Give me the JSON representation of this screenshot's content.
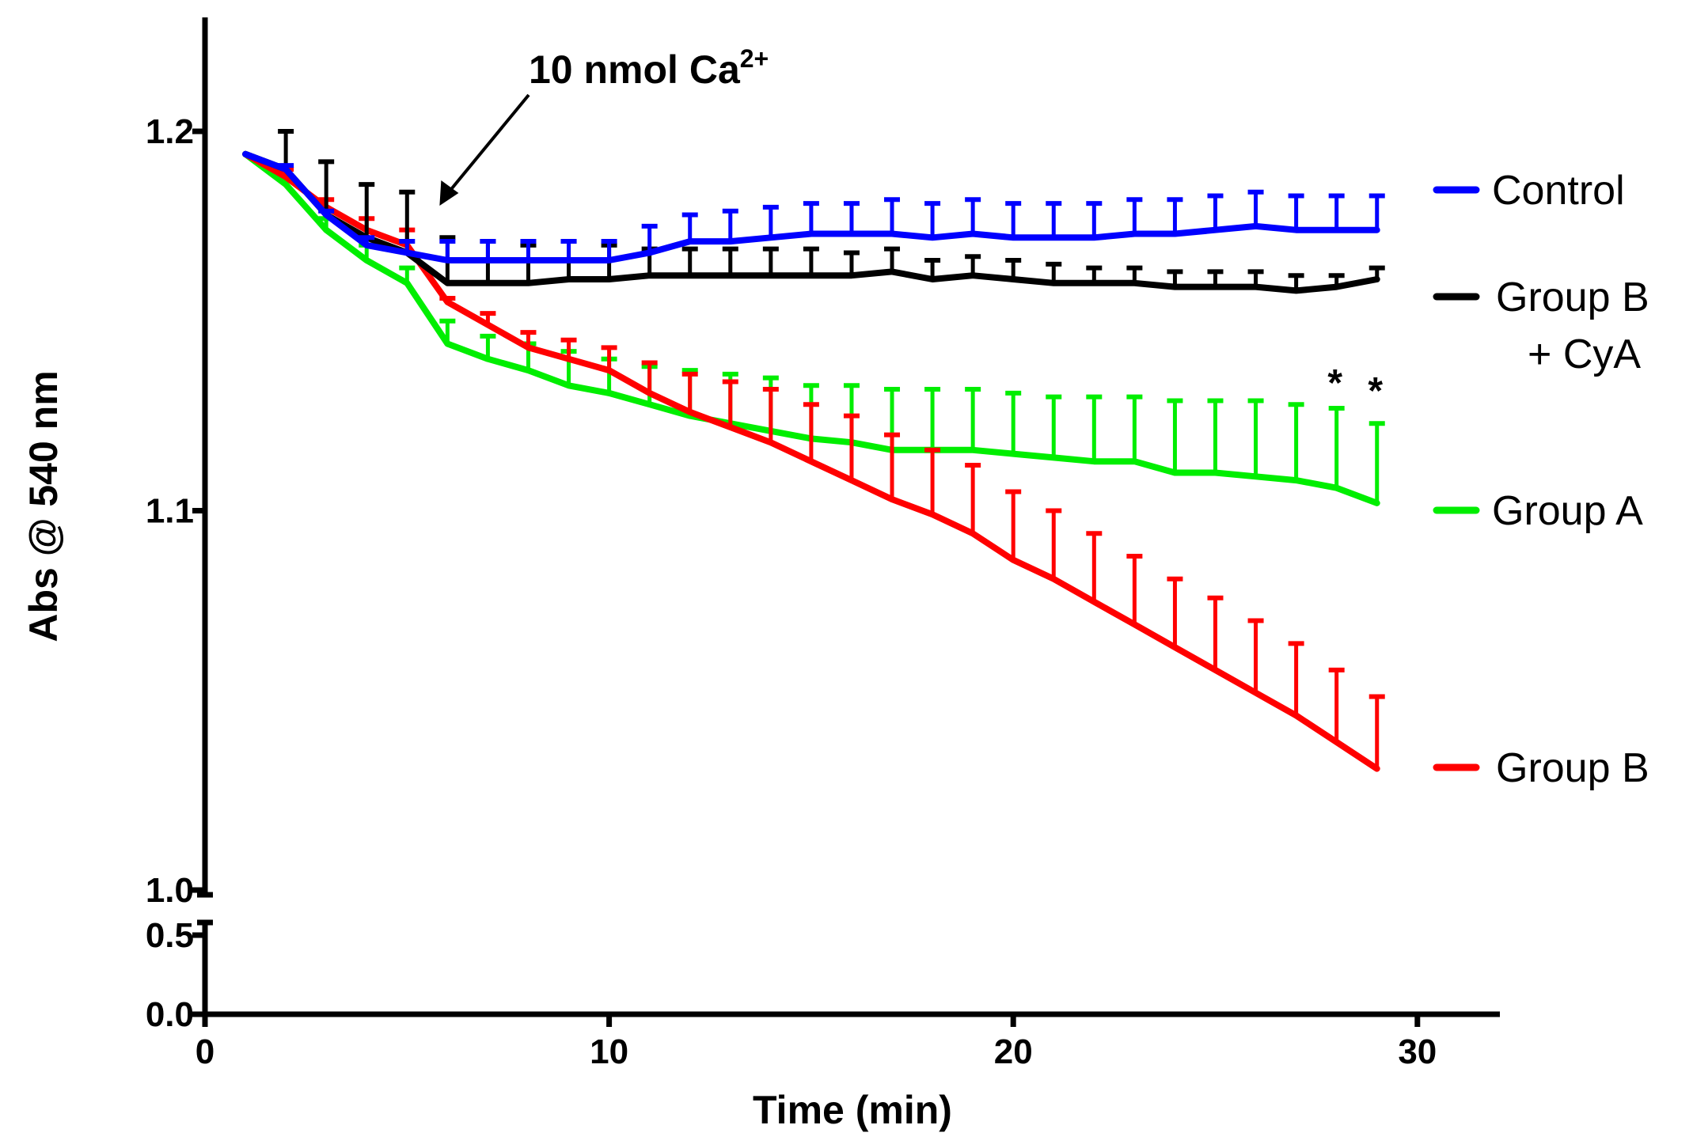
{
  "chart_data": {
    "type": "line",
    "title": "",
    "xlabel": "Time (min)",
    "ylabel": "Abs @ 540 nm",
    "xlim": [
      0,
      32
    ],
    "ylim_lower": [
      0.0,
      0.6
    ],
    "ylim_upper": [
      1.0,
      1.23
    ],
    "x_ticks": [
      0,
      10,
      20,
      30
    ],
    "x_tick_labels": [
      "0",
      "10",
      "20",
      "30"
    ],
    "y_ticks": [
      0.0,
      0.5,
      1.0,
      1.1,
      1.2
    ],
    "y_tick_labels": [
      "0.0",
      "0.5",
      "1.0",
      "1.1",
      "1.2"
    ],
    "x": [
      1,
      2,
      3,
      4,
      5,
      6,
      7,
      8,
      9,
      10,
      11,
      12,
      13,
      14,
      15,
      16,
      17,
      18,
      19,
      20,
      21,
      22,
      23,
      24,
      25,
      26,
      27,
      28,
      29
    ],
    "series": [
      {
        "name": "Control",
        "legend": [
          "Control"
        ],
        "color": "#0000ff",
        "values": [
          1.194,
          1.19,
          1.178,
          1.17,
          1.168,
          1.166,
          1.166,
          1.166,
          1.166,
          1.166,
          1.168,
          1.171,
          1.171,
          1.172,
          1.173,
          1.173,
          1.173,
          1.172,
          1.173,
          1.172,
          1.172,
          1.172,
          1.173,
          1.173,
          1.174,
          1.175,
          1.174,
          1.174,
          1.174
        ],
        "errors": [
          0.0,
          0.001,
          0.001,
          0.002,
          0.003,
          0.005,
          0.005,
          0.005,
          0.005,
          0.005,
          0.007,
          0.007,
          0.008,
          0.008,
          0.008,
          0.008,
          0.009,
          0.009,
          0.009,
          0.009,
          0.009,
          0.009,
          0.009,
          0.009,
          0.009,
          0.009,
          0.009,
          0.009,
          0.009
        ]
      },
      {
        "name": "Group B + CyA",
        "legend": [
          "Group B",
          "+ CyA"
        ],
        "color": "#000000",
        "values": [
          1.194,
          1.19,
          1.178,
          1.172,
          1.168,
          1.16,
          1.16,
          1.16,
          1.161,
          1.161,
          1.162,
          1.162,
          1.162,
          1.162,
          1.162,
          1.162,
          1.163,
          1.161,
          1.162,
          1.161,
          1.16,
          1.16,
          1.16,
          1.159,
          1.159,
          1.159,
          1.158,
          1.159,
          1.161
        ],
        "errors": [
          0.0,
          0.01,
          0.014,
          0.014,
          0.016,
          0.012,
          0.011,
          0.01,
          0.01,
          0.009,
          0.007,
          0.007,
          0.007,
          0.007,
          0.007,
          0.006,
          0.006,
          0.005,
          0.005,
          0.005,
          0.005,
          0.004,
          0.004,
          0.004,
          0.004,
          0.004,
          0.004,
          0.003,
          0.003
        ]
      },
      {
        "name": "Group A",
        "legend": [
          "Group  A"
        ],
        "color": "#00ee00",
        "values": [
          1.194,
          1.186,
          1.174,
          1.166,
          1.16,
          1.144,
          1.14,
          1.137,
          1.133,
          1.131,
          1.128,
          1.125,
          1.123,
          1.121,
          1.119,
          1.118,
          1.116,
          1.116,
          1.116,
          1.115,
          1.114,
          1.113,
          1.113,
          1.11,
          1.11,
          1.109,
          1.108,
          1.106,
          1.102
        ],
        "errors": [
          0.0,
          0.002,
          0.003,
          0.004,
          0.004,
          0.006,
          0.006,
          0.007,
          0.009,
          0.009,
          0.01,
          0.012,
          0.013,
          0.014,
          0.014,
          0.015,
          0.016,
          0.016,
          0.016,
          0.016,
          0.016,
          0.017,
          0.017,
          0.019,
          0.019,
          0.02,
          0.02,
          0.021,
          0.021
        ]
      },
      {
        "name": "Group B",
        "legend": [
          "Group B"
        ],
        "color": "#ff0000",
        "values": [
          1.194,
          1.188,
          1.18,
          1.174,
          1.17,
          1.155,
          1.149,
          1.143,
          1.14,
          1.137,
          1.131,
          1.126,
          1.122,
          1.118,
          1.113,
          1.108,
          1.103,
          1.099,
          1.094,
          1.087,
          1.082,
          1.076,
          1.07,
          1.064,
          1.058,
          1.052,
          1.046,
          1.039,
          1.032
        ],
        "errors": [
          0.0,
          0.002,
          0.002,
          0.003,
          0.004,
          0.001,
          0.003,
          0.004,
          0.005,
          0.006,
          0.008,
          0.01,
          0.012,
          0.014,
          0.015,
          0.017,
          0.017,
          0.017,
          0.018,
          0.018,
          0.018,
          0.018,
          0.018,
          0.018,
          0.019,
          0.019,
          0.019,
          0.019,
          0.019
        ]
      }
    ],
    "annotations": {
      "arrow_text": "10 nmol Ca",
      "arrow_text_sup": "2+",
      "arrow_time": 6,
      "significance": [
        {
          "x": 28,
          "text": "*"
        },
        {
          "x": 29,
          "text": "*"
        }
      ]
    },
    "legend_position": "right",
    "grid": false
  }
}
